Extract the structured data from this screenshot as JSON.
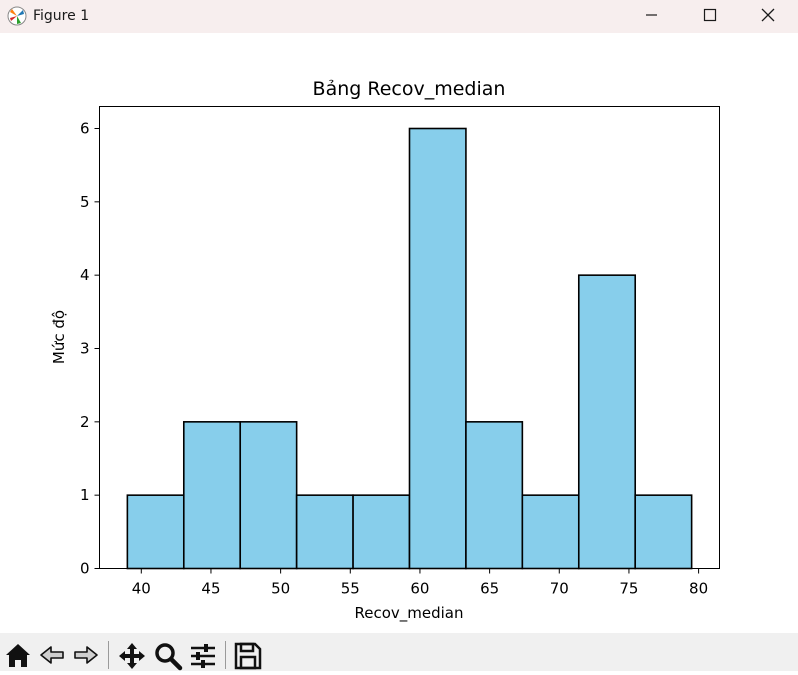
{
  "window": {
    "title": "Figure 1"
  },
  "icons": {
    "app": "matplotlib-icon",
    "minimize": "minimize-icon",
    "maximize": "maximize-icon",
    "close": "close-icon",
    "home": "home-icon",
    "back": "back-arrow-icon",
    "forward": "forward-arrow-icon",
    "pan": "move-icon",
    "zoom": "magnifier-icon",
    "configure": "sliders-icon",
    "save": "save-icon"
  },
  "chart_data": {
    "type": "bar",
    "title": "Bảng Recov_median",
    "xlabel": "Recov_median",
    "ylabel": "Mức độ",
    "bin_edges": [
      39.0,
      43.05,
      47.1,
      51.15,
      55.2,
      59.25,
      63.3,
      67.35,
      71.4,
      75.45,
      79.5
    ],
    "values": [
      1,
      2,
      2,
      1,
      1,
      6,
      2,
      1,
      4,
      1
    ],
    "xlim": [
      37.0,
      81.5
    ],
    "ylim": [
      0,
      6.3
    ],
    "xticks": [
      40,
      45,
      50,
      55,
      60,
      65,
      70,
      75,
      80
    ],
    "yticks": [
      0,
      1,
      2,
      3,
      4,
      5,
      6
    ],
    "bar_color": "#87ceeb",
    "edge_color": "#000000",
    "grid": false
  }
}
